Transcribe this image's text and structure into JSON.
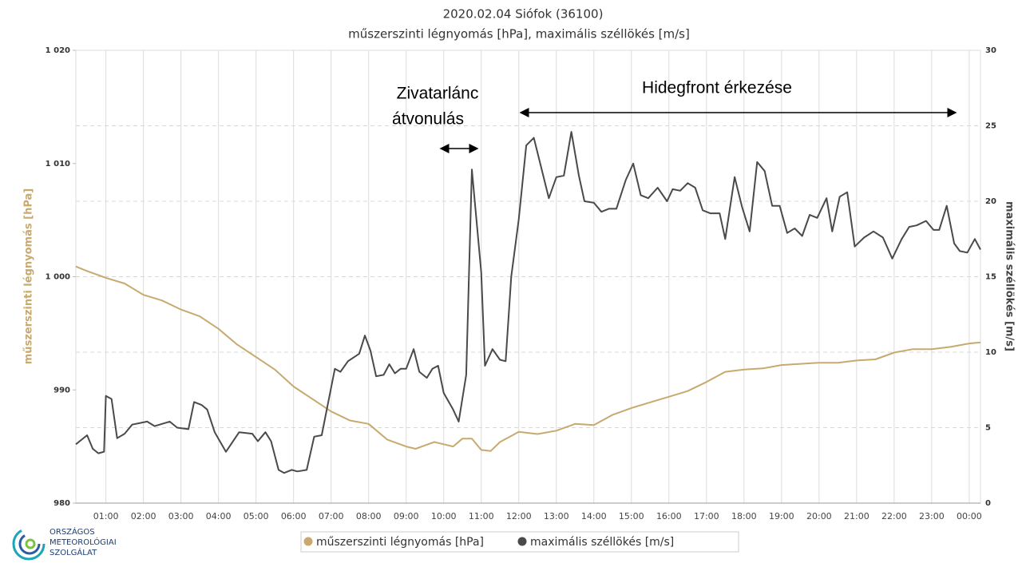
{
  "chart_data": {
    "type": "line",
    "title": "2020.02.04 Siófok (36100)",
    "subtitle": "műszerszinti légnyomás [hPa], maximális széllökés [m/s]",
    "ylabel": "műszerszinti légnyomás [hPa]",
    "y2label": "maximális széllökés [m/s]",
    "annotations": [
      {
        "lines": [
          "Zivatarlánc",
          "átvonulás"
        ]
      },
      {
        "lines": [
          "Hidegfront érkezése"
        ]
      }
    ],
    "logo": [
      "ORSZÁGOS",
      "METEOROLÓGIAI",
      "SZOLGÁLAT"
    ],
    "xlim": [
      0.2,
      24.3
    ],
    "xticks": [
      {
        "value": 1,
        "label": "01:00"
      },
      {
        "value": 2,
        "label": "02:00"
      },
      {
        "value": 3,
        "label": "03:00"
      },
      {
        "value": 4,
        "label": "04:00"
      },
      {
        "value": 5,
        "label": "05:00"
      },
      {
        "value": 6,
        "label": "06:00"
      },
      {
        "value": 7,
        "label": "07:00"
      },
      {
        "value": 8,
        "label": "08:00"
      },
      {
        "value": 9,
        "label": "09:00"
      },
      {
        "value": 10,
        "label": "10:00"
      },
      {
        "value": 11,
        "label": "11:00"
      },
      {
        "value": 12,
        "label": "12:00"
      },
      {
        "value": 13,
        "label": "13:00"
      },
      {
        "value": 14,
        "label": "14:00"
      },
      {
        "value": 15,
        "label": "15:00"
      },
      {
        "value": 16,
        "label": "16:00"
      },
      {
        "value": 17,
        "label": "17:00"
      },
      {
        "value": 18,
        "label": "18:00"
      },
      {
        "value": 19,
        "label": "19:00"
      },
      {
        "value": 20,
        "label": "20:00"
      },
      {
        "value": 21,
        "label": "21:00"
      },
      {
        "value": 22,
        "label": "22:00"
      },
      {
        "value": 23,
        "label": "23:00"
      },
      {
        "value": 24,
        "label": "00:00"
      }
    ],
    "ylim": [
      980,
      1020
    ],
    "yticks": [
      980,
      990,
      {
        "value": 1000,
        "label": "1 000"
      },
      {
        "value": 1010,
        "label": "1 010"
      },
      {
        "value": 1020,
        "label": "1 020"
      }
    ],
    "y2lim": [
      0,
      30
    ],
    "y2ticks": [
      0,
      5,
      10,
      15,
      20,
      25,
      30
    ],
    "grid": true,
    "legend": "bottom",
    "series": [
      {
        "name": "műszerszinti légnyomás [hPa]",
        "color": "#c8a96e",
        "axis": "y",
        "x": [
          0.2,
          0.5,
          1,
          1.5,
          2,
          2.5,
          3,
          3.5,
          4,
          4.5,
          5,
          5.5,
          6,
          6.5,
          7,
          7.5,
          8,
          8.5,
          9,
          9.25,
          9.5,
          9.75,
          10,
          10.25,
          10.5,
          10.75,
          11,
          11.25,
          11.5,
          12,
          12.5,
          13,
          13.5,
          14,
          14.5,
          15,
          15.5,
          16,
          16.5,
          17,
          17.5,
          18,
          18.5,
          19,
          19.5,
          20,
          20.5,
          21,
          21.5,
          22,
          22.5,
          23,
          23.5,
          24,
          24.3
        ],
        "values": [
          1000.9,
          1000.5,
          999.9,
          999.4,
          998.4,
          997.9,
          997.1,
          996.5,
          995.4,
          994.0,
          992.9,
          991.8,
          990.3,
          989.2,
          988.1,
          987.3,
          987.0,
          985.6,
          985.0,
          984.8,
          985.1,
          985.4,
          985.2,
          985.0,
          985.7,
          985.7,
          984.7,
          984.6,
          985.4,
          986.3,
          986.1,
          986.4,
          987.0,
          986.9,
          987.8,
          988.4,
          988.9,
          989.4,
          989.9,
          990.7,
          991.6,
          991.8,
          991.9,
          992.2,
          992.3,
          992.4,
          992.4,
          992.6,
          992.7,
          993.3,
          993.6,
          993.6,
          993.8,
          994.1,
          994.2
        ]
      },
      {
        "name": "maximális széllökés [m/s]",
        "color": "#4a4a4a",
        "axis": "y2",
        "x": [
          0.2,
          0.5,
          0.65,
          0.8,
          0.95,
          1.0,
          1.15,
          1.3,
          1.5,
          1.7,
          2.1,
          2.3,
          2.7,
          2.9,
          3.2,
          3.35,
          3.55,
          3.7,
          3.9,
          4.2,
          4.55,
          4.9,
          5.05,
          5.25,
          5.4,
          5.6,
          5.75,
          5.95,
          6.1,
          6.35,
          6.55,
          6.75,
          7.1,
          7.25,
          7.45,
          7.75,
          7.9,
          8.05,
          8.2,
          8.4,
          8.55,
          8.7,
          8.85,
          9.0,
          9.2,
          9.35,
          9.55,
          9.7,
          9.85,
          10.0,
          10.25,
          10.4,
          10.6,
          10.75,
          11.0,
          11.1,
          11.3,
          11.5,
          11.65,
          11.8,
          12.0,
          12.2,
          12.4,
          12.6,
          12.8,
          13.0,
          13.2,
          13.4,
          13.6,
          13.75,
          14.0,
          14.2,
          14.4,
          14.6,
          14.85,
          15.05,
          15.25,
          15.45,
          15.7,
          15.95,
          16.1,
          16.3,
          16.5,
          16.7,
          16.9,
          17.1,
          17.35,
          17.5,
          17.75,
          17.95,
          18.15,
          18.35,
          18.55,
          18.75,
          18.95,
          19.15,
          19.35,
          19.55,
          19.75,
          19.95,
          20.2,
          20.35,
          20.55,
          20.75,
          20.95,
          21.2,
          21.45,
          21.7,
          21.95,
          22.2,
          22.4,
          22.6,
          22.85,
          23.05,
          23.2,
          23.4,
          23.6,
          23.75,
          23.95,
          24.15,
          24.3
        ],
        "values": [
          3.9,
          4.5,
          3.6,
          3.3,
          3.4,
          7.1,
          6.9,
          4.3,
          4.6,
          5.2,
          5.4,
          5.1,
          5.4,
          5.0,
          4.9,
          6.7,
          6.5,
          6.2,
          4.7,
          3.4,
          4.7,
          4.6,
          4.1,
          4.7,
          4.1,
          2.2,
          2.0,
          2.2,
          2.1,
          2.2,
          4.4,
          4.5,
          8.9,
          8.7,
          9.4,
          9.9,
          11.1,
          10.1,
          8.4,
          8.5,
          9.2,
          8.6,
          8.9,
          8.9,
          10.2,
          8.7,
          8.3,
          8.9,
          9.1,
          7.3,
          6.2,
          5.4,
          8.5,
          22.1,
          15.3,
          9.1,
          10.2,
          9.5,
          9.4,
          15.0,
          18.8,
          23.7,
          24.2,
          22.2,
          20.2,
          21.6,
          21.7,
          24.6,
          21.7,
          20.0,
          19.9,
          19.3,
          19.5,
          19.5,
          21.4,
          22.5,
          20.4,
          20.2,
          20.9,
          20.0,
          20.8,
          20.7,
          21.2,
          20.9,
          19.4,
          19.2,
          19.2,
          17.5,
          21.6,
          19.6,
          18.0,
          22.6,
          22.0,
          19.7,
          19.7,
          17.9,
          18.2,
          17.7,
          19.1,
          18.9,
          20.2,
          18.0,
          20.3,
          20.6,
          17.0,
          17.6,
          18.0,
          17.6,
          16.2,
          17.5,
          18.3,
          18.4,
          18.7,
          18.1,
          18.1,
          19.7,
          17.2,
          16.7,
          16.6,
          17.5,
          16.8
        ]
      }
    ]
  }
}
